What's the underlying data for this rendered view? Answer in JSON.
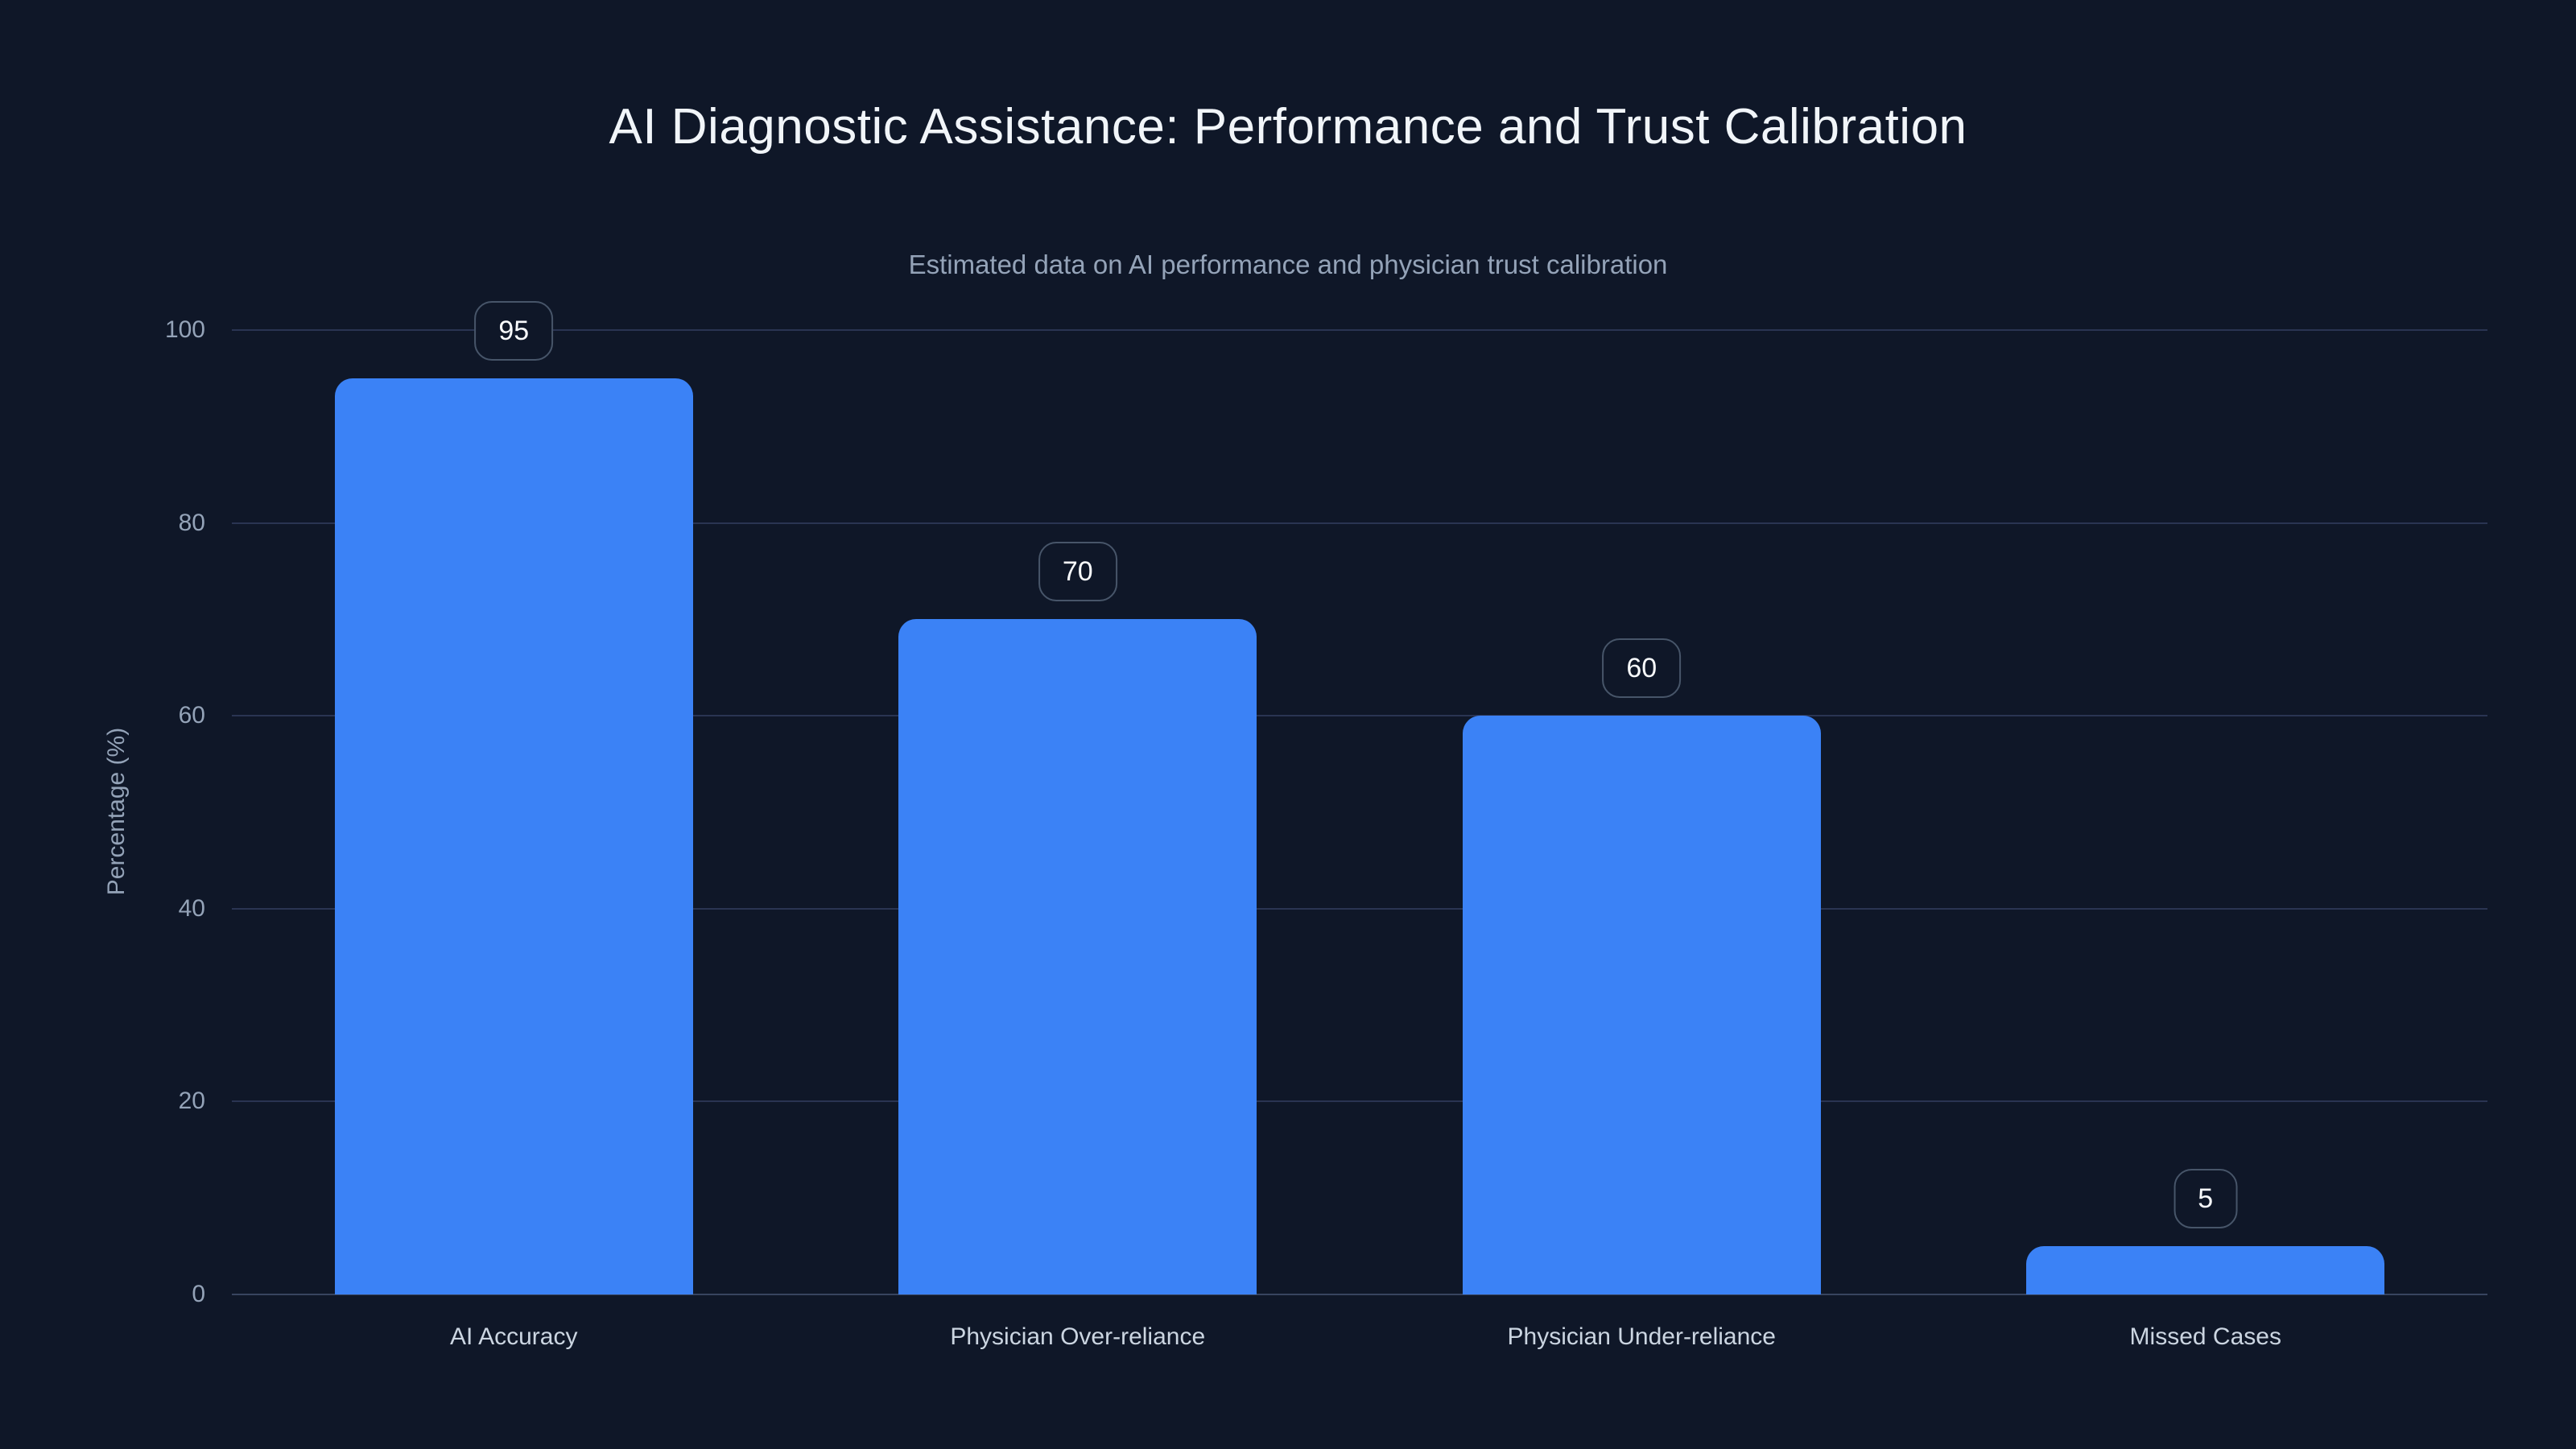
{
  "page": {
    "title": "AI Diagnostic Assistance: Performance and Trust Calibration",
    "subtitle": "Estimated data on AI performance and physician trust calibration"
  },
  "colors": {
    "background": "#0f1728",
    "bar": "#3b82f6",
    "gridline": "#2a3452",
    "baseline": "#38445f",
    "title_text": "#f1f5f9",
    "subtitle_text": "#94a3b8",
    "tick_text": "#94a3b8",
    "category_text": "#cbd5e1",
    "badge_border": "#475569",
    "badge_text": "#f8fafc"
  },
  "chart_data": {
    "type": "bar",
    "title": "AI Diagnostic Assistance: Performance and Trust Calibration",
    "subtitle": "Estimated data on AI performance and physician trust calibration",
    "categories": [
      "AI Accuracy",
      "Physician Over-reliance",
      "Physician Under-reliance",
      "Missed Cases"
    ],
    "values": [
      95,
      70,
      60,
      5
    ],
    "data_labels": [
      "95",
      "70",
      "60",
      "5"
    ],
    "xlabel": "",
    "ylabel": "Percentage (%)",
    "ylim": [
      0,
      100
    ],
    "yticks": [
      0,
      20,
      40,
      60,
      80,
      100
    ],
    "grid": "horizontal",
    "legend": "none",
    "bar_color": "#3b82f6"
  }
}
